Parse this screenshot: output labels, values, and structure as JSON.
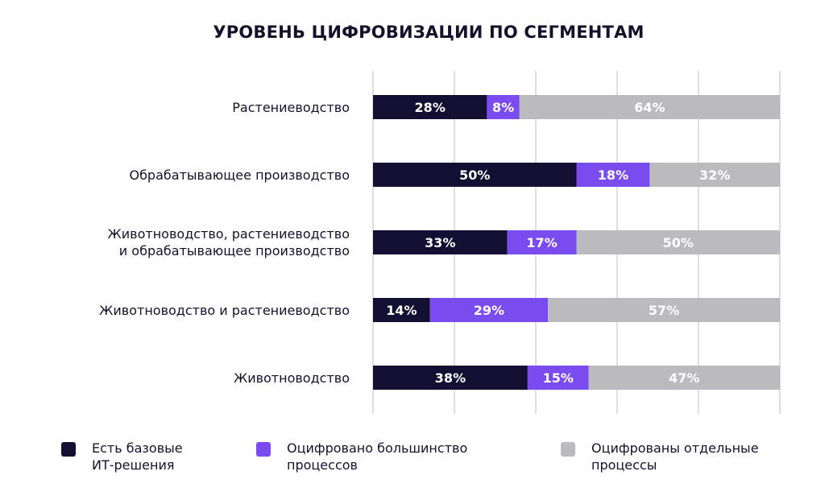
{
  "chart_data": {
    "type": "bar",
    "orientation": "horizontal",
    "stacked": true,
    "title": "УРОВЕНЬ ЦИФРОВИЗАЦИИ ПО СЕГМЕНТАМ",
    "xlabel": "",
    "ylabel": "",
    "xlim": [
      0,
      100
    ],
    "grid": true,
    "legend_position": "bottom",
    "categories": [
      [
        "Растениеводство"
      ],
      [
        "Обрабатывающее производство"
      ],
      [
        "Животноводство, растениеводство",
        "и обрабатывающее производство"
      ],
      [
        "Животноводство и растениеводство"
      ],
      [
        "Животноводство"
      ]
    ],
    "series": [
      {
        "name": "Есть базовые ИТ-решения",
        "name_lines": [
          "Есть базовые",
          "ИТ-решения"
        ],
        "color": "#120f33",
        "values": [
          28,
          50,
          33,
          14,
          38
        ],
        "labels": [
          "28%",
          "50%",
          "33%",
          "14%",
          "38%"
        ]
      },
      {
        "name": "Оцифровано большинство процессов",
        "name_lines": [
          "Оцифровано большинство",
          "процессов"
        ],
        "color": "#7a4cf0",
        "values": [
          8,
          18,
          17,
          29,
          15
        ],
        "labels": [
          "8%",
          "18%",
          "17%",
          "29%",
          "15%"
        ]
      },
      {
        "name": "Оцифрованы отдельные процессы",
        "name_lines": [
          "Оцифрованы отдельные",
          "процессы"
        ],
        "color": "#bbbbbf",
        "values": [
          64,
          32,
          50,
          57,
          47
        ],
        "labels": [
          "64%",
          "32%",
          "50%",
          "57%",
          "47%"
        ]
      }
    ]
  }
}
